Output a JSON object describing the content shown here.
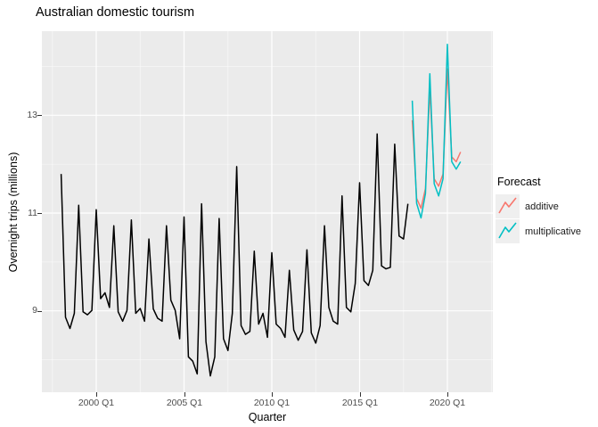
{
  "title": "Australian domestic tourism",
  "legend": {
    "title": "Forecast",
    "items": [
      {
        "label": "additive"
      },
      {
        "label": "multiplicative"
      }
    ]
  },
  "chart_data": {
    "type": "line",
    "title": "Australian domestic tourism",
    "xlabel": "Quarter",
    "ylabel": "Overnight trips (millions)",
    "panel_bg": "#EBEBEB",
    "gridline_color": "#FFFFFF",
    "axis_text_color": "#4D4D4D",
    "legend_position": "right",
    "ylim": [
      7.34,
      14.72
    ],
    "x_axis": {
      "ticks": [
        "2000 Q1",
        "2005 Q1",
        "2010 Q1",
        "2015 Q1",
        "2020 Q1"
      ]
    },
    "y_axis": {
      "ticks": [
        "13",
        "11",
        "9"
      ],
      "tick_values": [
        13,
        11,
        9
      ],
      "minor_values": [
        8,
        10,
        12,
        14
      ]
    },
    "series": [
      {
        "name": "historical",
        "color": "#000000",
        "width": 1.5,
        "start": "1998 Q1",
        "values": [
          11.8,
          8.87,
          8.64,
          8.95,
          11.16,
          8.98,
          8.92,
          9.01,
          11.07,
          9.25,
          9.37,
          9.07,
          10.74,
          8.98,
          8.79,
          9.01,
          10.86,
          8.95,
          9.05,
          8.79,
          10.47,
          9.04,
          8.85,
          8.79,
          10.74,
          9.22,
          9.01,
          8.43,
          10.92,
          8.06,
          7.97,
          7.71,
          11.19,
          8.37,
          7.67,
          8.06,
          10.89,
          8.43,
          8.19,
          8.95,
          11.95,
          8.7,
          8.52,
          8.58,
          10.22,
          8.73,
          8.95,
          8.46,
          10.19,
          8.73,
          8.64,
          8.46,
          9.83,
          8.61,
          8.4,
          8.58,
          10.25,
          8.55,
          8.34,
          8.7,
          10.74,
          9.07,
          8.79,
          8.73,
          11.35,
          9.07,
          8.98,
          9.56,
          11.62,
          9.62,
          9.52,
          9.83,
          12.62,
          9.92,
          9.86,
          9.89,
          12.41,
          10.53,
          10.47,
          11.19
        ]
      },
      {
        "name": "additive",
        "color": "#F8766D",
        "width": 1.5,
        "start": "2018 Q1",
        "values": [
          12.9,
          11.3,
          11.1,
          11.5,
          13.55,
          11.7,
          11.55,
          11.8,
          13.95,
          12.15,
          12.05,
          12.25
        ]
      },
      {
        "name": "multiplicative",
        "color": "#00BFC4",
        "width": 1.5,
        "start": "2018 Q1",
        "values": [
          13.3,
          11.2,
          10.9,
          11.4,
          13.85,
          11.6,
          11.35,
          11.7,
          14.45,
          12.05,
          11.9,
          12.05
        ]
      }
    ]
  }
}
